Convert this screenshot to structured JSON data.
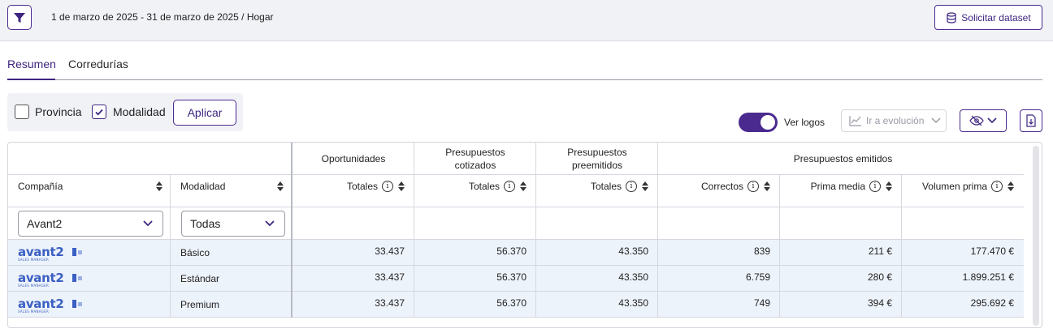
{
  "header": {
    "period": "1 de marzo de 2025 - 31 de marzo de 2025 / Hogar",
    "dataset_button": "Solicitar dataset"
  },
  "tabs": [
    {
      "label": "Resumen",
      "active": true
    },
    {
      "label": "Corredurías",
      "active": false
    }
  ],
  "options": {
    "provincia_label": "Provincia",
    "provincia_checked": false,
    "modalidad_label": "Modalidad",
    "modalidad_checked": true,
    "apply_button": "Aplicar"
  },
  "controls": {
    "toggle_label": "Ver logos",
    "toggle_on": true,
    "evolution_button": "Ir a evolución"
  },
  "table": {
    "groups": {
      "oportunidades": "Oportunidades",
      "cotizados_line1": "Presupuestos",
      "cotizados_line2": "cotizados",
      "preemitidos_line1": "Presupuestos",
      "preemitidos_line2": "preemitidos",
      "emitidos": "Presupuestos emitidos"
    },
    "columns": {
      "compania": "Compañía",
      "modalidad": "Modalidad",
      "totales_oportunidades": "Totales",
      "totales_cotizados": "Totales",
      "totales_preemitidos": "Totales",
      "correctos": "Correctos",
      "prima_media": "Prima media",
      "volumen_prima": "Volumen prima"
    },
    "filters": {
      "compania": "Avant2",
      "modalidad": "Todas"
    },
    "rows": [
      {
        "logo_text": "avant2",
        "logo_sub": "SALES MANAGER",
        "modalidad": "Básico",
        "oportunidades": "33.437",
        "cotizados": "56.370",
        "preemitidos": "43.350",
        "correctos": "839",
        "prima_media": "211 €",
        "volumen_prima": "177.470 €"
      },
      {
        "logo_text": "avant2",
        "logo_sub": "SALES MANAGER",
        "modalidad": "Estándar",
        "oportunidades": "33.437",
        "cotizados": "56.370",
        "preemitidos": "43.350",
        "correctos": "6.759",
        "prima_media": "280 €",
        "volumen_prima": "1.899.251 €"
      },
      {
        "logo_text": "avant2",
        "logo_sub": "SALES MANAGER",
        "modalidad": "Premium",
        "oportunidades": "33.437",
        "cotizados": "56.370",
        "preemitidos": "43.350",
        "correctos": "749",
        "prima_media": "394 €",
        "volumen_prima": "295.692 €"
      }
    ]
  },
  "colors": {
    "accent": "#4b2a8f",
    "logo_blue": "#3b5fc3",
    "row_highlight": "#edf3fb",
    "topbar_bg": "#f1f2f6"
  },
  "icons": {
    "filter": "funnel-icon",
    "dataset": "database-icon",
    "evolution": "line-chart-icon",
    "visibility": "eye-off-icon",
    "download": "file-download-icon",
    "info": "info-icon",
    "sort": "sort-icon"
  }
}
